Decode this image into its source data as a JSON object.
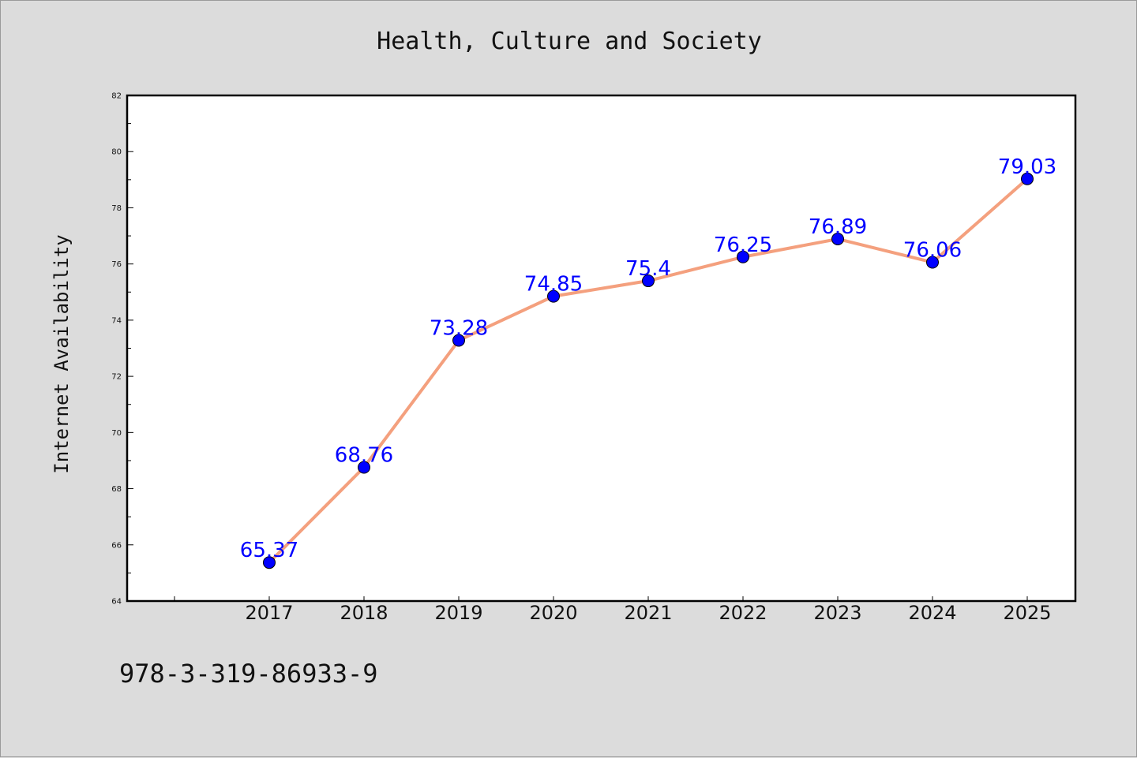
{
  "chart_data": {
    "type": "line",
    "title": "Health, Culture and Society",
    "xlabel": "",
    "ylabel": "Internet Availability",
    "categories": [
      "2017",
      "2018",
      "2019",
      "2020",
      "2021",
      "2022",
      "2023",
      "2024",
      "2025"
    ],
    "series": [
      {
        "values": [
          65.37,
          68.76,
          73.28,
          74.85,
          75.4,
          76.25,
          76.89,
          76.06,
          79.03
        ],
        "line_color": "#f4a07e",
        "marker_color": "#0000ff"
      }
    ],
    "data_labels": [
      "65.37",
      "68.76",
      "73.28",
      "74.85",
      "75.4",
      "76.25",
      "76.89",
      "76.06",
      "79.03"
    ],
    "ylim": [
      64,
      82
    ],
    "yticks": [
      "64",
      "66",
      "68",
      "70",
      "72",
      "74",
      "76",
      "78",
      "80",
      "82"
    ],
    "grid": false,
    "label_color": "#0000ff"
  },
  "footer": {
    "isbn": "978-3-319-86933-9"
  }
}
